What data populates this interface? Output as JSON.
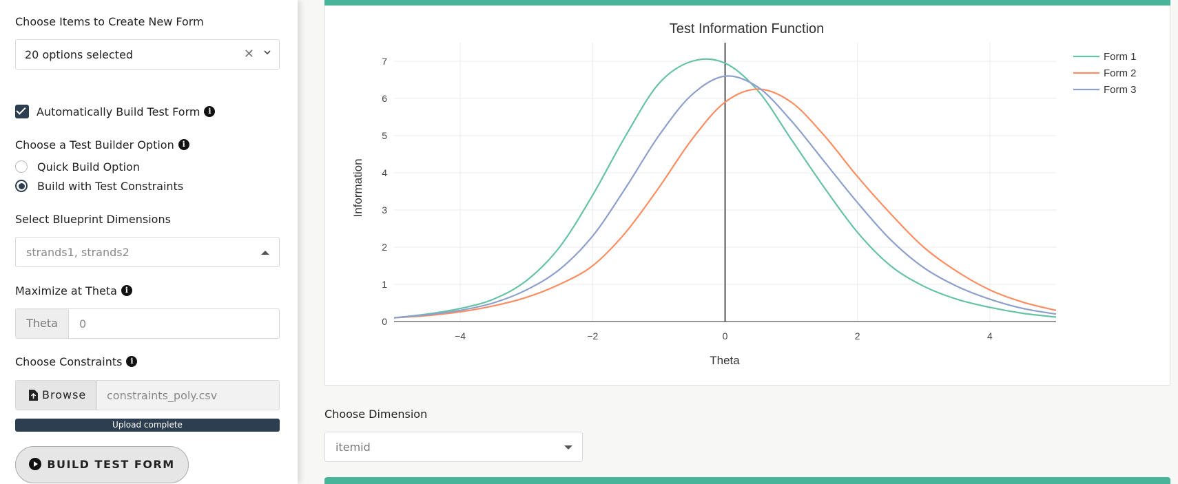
{
  "sidebar": {
    "items_label": "Choose Items to Create New Form",
    "items_select_value": "20 options selected",
    "auto_build_label": "Automatically Build Test Form",
    "builder_label": "Choose a Test Builder Option",
    "radio_options": [
      "Quick Build Option",
      "Build with Test Constraints"
    ],
    "radio_selected": "Build with Test Constraints",
    "blueprint_label": "Select Blueprint Dimensions",
    "blueprint_value": "strands1, strands2",
    "theta_label": "Maximize at Theta",
    "theta_addon": "Theta",
    "theta_value": "0",
    "constraints_label": "Choose Constraints",
    "browse_label": "Browse",
    "file_name": "constraints_poly.csv",
    "progress_text": "Upload complete",
    "build_button_label": "BUILD TEST FORM"
  },
  "main": {
    "dimension_label": "Choose Dimension",
    "dimension_value": "itemid"
  },
  "chart_data": {
    "type": "line",
    "title": "Test Information Function",
    "xlabel": "Theta",
    "ylabel": "Information",
    "xlim": [
      -5,
      5
    ],
    "ylim": [
      0,
      7.5
    ],
    "xticks": [
      -4,
      -2,
      0,
      2,
      4
    ],
    "yticks": [
      0,
      1,
      2,
      3,
      4,
      5,
      6,
      7
    ],
    "x": [
      -5,
      -4.5,
      -4,
      -3.5,
      -3,
      -2.5,
      -2,
      -1.5,
      -1,
      -0.5,
      0,
      0.5,
      1,
      1.5,
      2,
      2.5,
      3,
      3.5,
      4,
      4.5,
      5
    ],
    "series": [
      {
        "name": "Form 1",
        "color": "#66c2a5",
        "values": [
          0.1,
          0.2,
          0.35,
          0.6,
          1.1,
          2.0,
          3.4,
          5.0,
          6.4,
          7.0,
          6.95,
          6.2,
          4.9,
          3.6,
          2.4,
          1.5,
          0.95,
          0.6,
          0.38,
          0.22,
          0.12
        ]
      },
      {
        "name": "Form 2",
        "color": "#fc8d62",
        "values": [
          0.1,
          0.16,
          0.26,
          0.42,
          0.65,
          1.0,
          1.5,
          2.4,
          3.6,
          4.9,
          5.9,
          6.25,
          5.9,
          5.0,
          3.9,
          2.9,
          2.0,
          1.35,
          0.85,
          0.52,
          0.3
        ]
      },
      {
        "name": "Form 3",
        "color": "#8da0cb",
        "values": [
          0.1,
          0.18,
          0.3,
          0.5,
          0.85,
          1.4,
          2.3,
          3.6,
          5.0,
          6.1,
          6.6,
          6.3,
          5.4,
          4.3,
          3.2,
          2.2,
          1.45,
          0.95,
          0.6,
          0.35,
          0.2
        ]
      }
    ],
    "vline_x": 0,
    "grid": true,
    "legend": "top-right"
  }
}
